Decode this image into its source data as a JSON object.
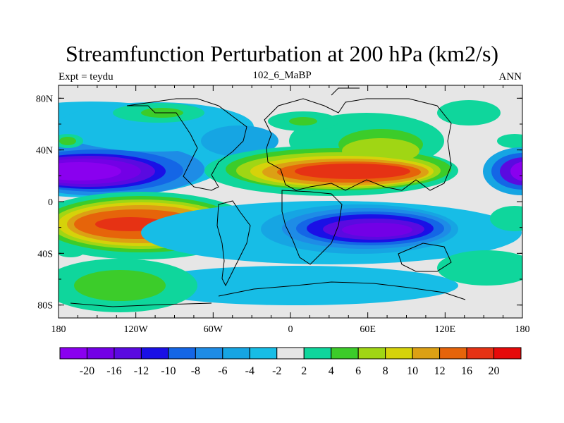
{
  "title": "Streamfunction Perturbation at 200 hPa (km2/s)",
  "left_label": "Expt = teydu",
  "center_label": "102_6_MaBP",
  "right_label": "ANN",
  "map": {
    "lon_ticks": [
      "180",
      "120W",
      "60W",
      "0",
      "60E",
      "120E",
      "180"
    ],
    "lat_ticks": [
      "80N",
      "40N",
      "0",
      "40S",
      "80S"
    ],
    "background_color": "#e6e6e6",
    "coastline_color": "#000000"
  },
  "colorbar": {
    "labels": [
      "-20",
      "-16",
      "-12",
      "-10",
      "-8",
      "-6",
      "-4",
      "-2",
      "2",
      "4",
      "6",
      "8",
      "10",
      "12",
      "16",
      "20"
    ],
    "colors": [
      "#8a00ef",
      "#7300e6",
      "#5a0ae0",
      "#1a10e6",
      "#1466e6",
      "#1e8ce6",
      "#16a5e3",
      "#17bde6",
      "#e6e6e6",
      "#0fd69c",
      "#3ccc2a",
      "#a0d614",
      "#d6d20a",
      "#dca014",
      "#e6640a",
      "#e63214",
      "#e60a0a"
    ]
  }
}
